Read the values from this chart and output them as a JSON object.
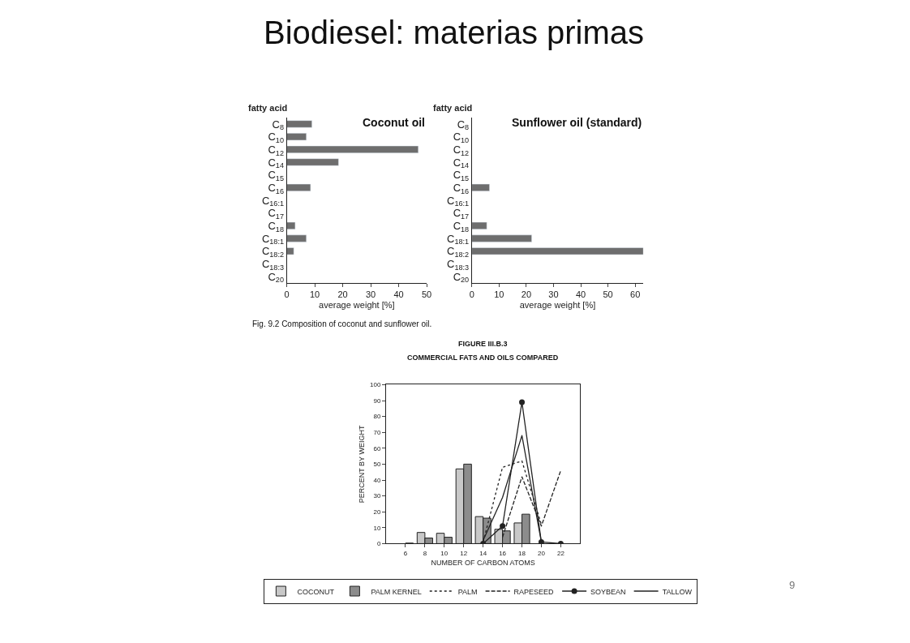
{
  "chart_data": [
    {
      "type": "bar",
      "orientation": "horizontal",
      "title": "Coconut oil",
      "ylabel": "fatty acid",
      "xlabel": "average weight [%]",
      "categories": [
        "C$_{8}$",
        "C$_{10}$",
        "C$_{12}$",
        "C$_{14}$",
        "C$_{15}$",
        "C$_{16}$",
        "C$_{16:1}$",
        "C$_{17}$",
        "C$_{18}$",
        "C$_{18:1}$",
        "C$_{18:2}$",
        "C$_{18:3}$",
        "C$_{20}$"
      ],
      "values": [
        9,
        7,
        47,
        18.5,
        null,
        8.5,
        null,
        null,
        3,
        7,
        2.5,
        null,
        null
      ],
      "color": "#6e6e6e",
      "xlim": [
        0,
        50
      ],
      "xticks": [
        0,
        10,
        20,
        30,
        40,
        50
      ],
      "annotations": [
        "Biodiesel: materias primas",
        "Fig. 9.2 Composition of coconut and sunflower oil."
      ]
    },
    {
      "type": "bar",
      "orientation": "horizontal",
      "title": "Sunflower oil (standard)",
      "ylabel": "fatty acid",
      "xlabel": "average weight [%]",
      "categories": [
        "C$_{8}$",
        "C$_{10}$",
        "C$_{12}$",
        "C$_{14}$",
        "C$_{15}$",
        "C$_{16}$",
        "C$_{16:1}$",
        "C$_{17}$",
        "C$_{18}$",
        "C$_{18:1}$",
        "C$_{18:2}$",
        "C$_{18:3}$",
        "C$_{20}$"
      ],
      "values": [
        null,
        null,
        null,
        null,
        null,
        6.5,
        null,
        null,
        5.5,
        22,
        63,
        null,
        null
      ],
      "color": "#6e6e6e",
      "xlim": [
        0,
        63
      ],
      "xticks": [
        0,
        10,
        20,
        30,
        40,
        50,
        60
      ]
    },
    {
      "type": "bar",
      "title": "FIGURE III.B.3",
      "subtitle": "COMMERCIAL FATS AND OILS COMPARED",
      "xlabel": "NUMBER OF CARBON ATOMS",
      "ylabel": "PERCENT BY WEIGHT",
      "xlim": [
        4,
        24
      ],
      "xticks": [
        6,
        8,
        10,
        12,
        14,
        16,
        18,
        20,
        22
      ],
      "ylim": [
        0,
        100
      ],
      "yticks": [
        0,
        10,
        20,
        30,
        40,
        50,
        60,
        70,
        80,
        90,
        100
      ],
      "legend": "bottom",
      "series": [
        {
          "name": "COCONUT",
          "type": "bar",
          "color": "#c8c8c8",
          "x": [
            8,
            10,
            12,
            14,
            16,
            18
          ],
          "values": [
            7,
            6.5,
            47,
            17,
            9,
            13
          ]
        },
        {
          "name": "PALM KERNEL",
          "type": "bar",
          "color": "#8c8c8c",
          "x": [
            6,
            8,
            10,
            12,
            14,
            16,
            18
          ],
          "values": [
            0.3,
            3.5,
            4,
            50,
            16,
            8,
            18.5
          ]
        },
        {
          "name": "PALM",
          "type": "line",
          "line_style": "dotted",
          "marker": "none",
          "color": "#222222",
          "x": [
            14,
            16,
            18,
            20
          ],
          "values": [
            1,
            48,
            52,
            12
          ]
        },
        {
          "name": "RAPESEED",
          "type": "line",
          "line_style": "dashed",
          "marker": "none",
          "color": "#222222",
          "x": [
            16,
            18,
            20,
            22
          ],
          "values": [
            4,
            42,
            11,
            46
          ]
        },
        {
          "name": "SOYBEAN",
          "type": "line",
          "line_style": "solid",
          "marker": "circle",
          "color": "#222222",
          "x": [
            14,
            16,
            18,
            20,
            22
          ],
          "values": [
            0,
            11,
            89,
            1,
            0
          ]
        },
        {
          "name": "TALLOW",
          "type": "line",
          "line_style": "solid",
          "marker": "none",
          "color": "#222222",
          "x": [
            14,
            16,
            18,
            20
          ],
          "values": [
            2,
            29,
            68,
            1
          ]
        }
      ],
      "annotations": [
        "9"
      ]
    }
  ]
}
